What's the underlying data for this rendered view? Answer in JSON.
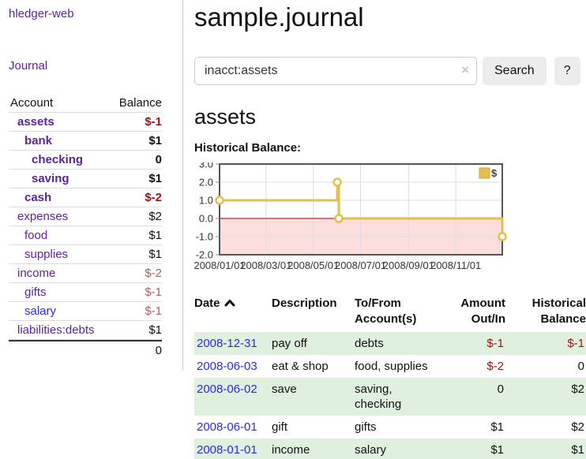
{
  "app": {
    "brand": "hledger-web"
  },
  "sidebar": {
    "nav": {
      "journal": "Journal"
    },
    "accounts": {
      "headers": {
        "account": "Account",
        "balance": "Balance"
      },
      "rows": [
        {
          "account": "assets",
          "balance": "$-1",
          "level": 1,
          "bold": true,
          "variant": "purple"
        },
        {
          "account": "bank",
          "balance": "$1",
          "level": 2,
          "bold": true,
          "variant": "purple"
        },
        {
          "account": "checking",
          "balance": "0",
          "level": 3,
          "bold": true,
          "variant": "purple"
        },
        {
          "account": "saving",
          "balance": "$1",
          "level": 3,
          "bold": true,
          "variant": "purple"
        },
        {
          "account": "cash",
          "balance": "$-2",
          "level": 2,
          "bold": true,
          "variant": "purple"
        },
        {
          "account": "expenses",
          "balance": "$2",
          "level": 1,
          "bold": false,
          "variant": "purple"
        },
        {
          "account": "food",
          "balance": "$1",
          "level": 2,
          "bold": false,
          "variant": "purple"
        },
        {
          "account": "supplies",
          "balance": "$1",
          "level": 2,
          "bold": false,
          "variant": "purple"
        },
        {
          "account": "income",
          "balance": "$-2",
          "level": 1,
          "bold": false,
          "variant": "purple"
        },
        {
          "account": "gifts",
          "balance": "$-1",
          "level": 2,
          "bold": false,
          "variant": "purple"
        },
        {
          "account": "salary",
          "balance": "$-1",
          "level": 2,
          "bold": false,
          "variant": "blue"
        },
        {
          "account": "liabilities:debts",
          "balance": "$1",
          "level": 1,
          "bold": false,
          "variant": "purple"
        }
      ],
      "total": "0"
    }
  },
  "main": {
    "title": "sample.journal",
    "search": {
      "value": "inacct:assets",
      "clear": "×",
      "submit": "Search",
      "help": "?"
    },
    "heading": "assets",
    "chart_label": "Historical Balance:"
  },
  "chart_data": {
    "type": "line",
    "title": "Historical Balance:",
    "step": "after",
    "legend": [
      {
        "label": "$",
        "color": "#E6BE4B"
      }
    ],
    "legend_position": "top-right",
    "grid": true,
    "x_range": [
      "2008-01-01",
      "2008-12-31"
    ],
    "x_tick_dates": [
      "2008-01-01",
      "2008-03-01",
      "2008-05-01",
      "2008-07-01",
      "2008-09-01",
      "2008-11-01"
    ],
    "x_tick_labels": [
      "2008/01/01",
      "2008/03/01",
      "2008/05/01",
      "2008/07/01",
      "2008/09/01",
      "2008/11/01"
    ],
    "y_ticks": [
      3.0,
      2.0,
      1.0,
      0.0,
      -1.0,
      -2.0
    ],
    "ylim": [
      -2.0,
      3.0
    ],
    "series": [
      {
        "name": "$",
        "color": "#E6BE4B",
        "points": [
          [
            "2008-01-01",
            1
          ],
          [
            "2008-06-01",
            2
          ],
          [
            "2008-06-03",
            0
          ],
          [
            "2008-12-31",
            -1
          ]
        ]
      }
    ],
    "styles": {
      "negative_fill": "#FBDEDC",
      "zero_line": "#8B0000",
      "plot_border": "#555555",
      "gridline": "#DDDDDD",
      "marker_fill": "#FFFFFF",
      "legend_border": "#C9A63E",
      "tick_color": "#888888",
      "label_color": "#333333"
    }
  },
  "register": {
    "headers": {
      "date": "Date",
      "sort_icon": "chevron-up",
      "description": "Description",
      "accounts_line1": "To/From",
      "accounts_line2": "Account(s)",
      "amount_line1": "Amount",
      "amount_line2": "Out/In",
      "balance_line1": "Historical",
      "balance_line2": "Balance"
    },
    "rows": [
      {
        "date": "2008-12-31",
        "description": "pay off",
        "accounts": "debts",
        "amount": "$-1",
        "balance": "$-1"
      },
      {
        "date": "2008-06-03",
        "description": "eat & shop",
        "accounts": "food, supplies",
        "amount": "$-2",
        "balance": "0"
      },
      {
        "date": "2008-06-02",
        "description": "save",
        "accounts": "saving, checking",
        "amount": "0",
        "balance": "$2"
      },
      {
        "date": "2008-06-01",
        "description": "gift",
        "accounts": "gifts",
        "amount": "$1",
        "balance": "$2"
      },
      {
        "date": "2008-01-01",
        "description": "income",
        "accounts": "salary",
        "amount": "$1",
        "balance": "$1"
      }
    ]
  },
  "colors": {
    "link_purple": "#5C2399",
    "link_blue": "#2B2BDF",
    "negative_strong": "#A11212",
    "negative_soft": "#B06060",
    "row_green": "#DFF0DF",
    "accent_gold": "#E6BE4B",
    "chart_negative_pink": "#FBDEDC",
    "button_gray": "#ECECEC"
  }
}
